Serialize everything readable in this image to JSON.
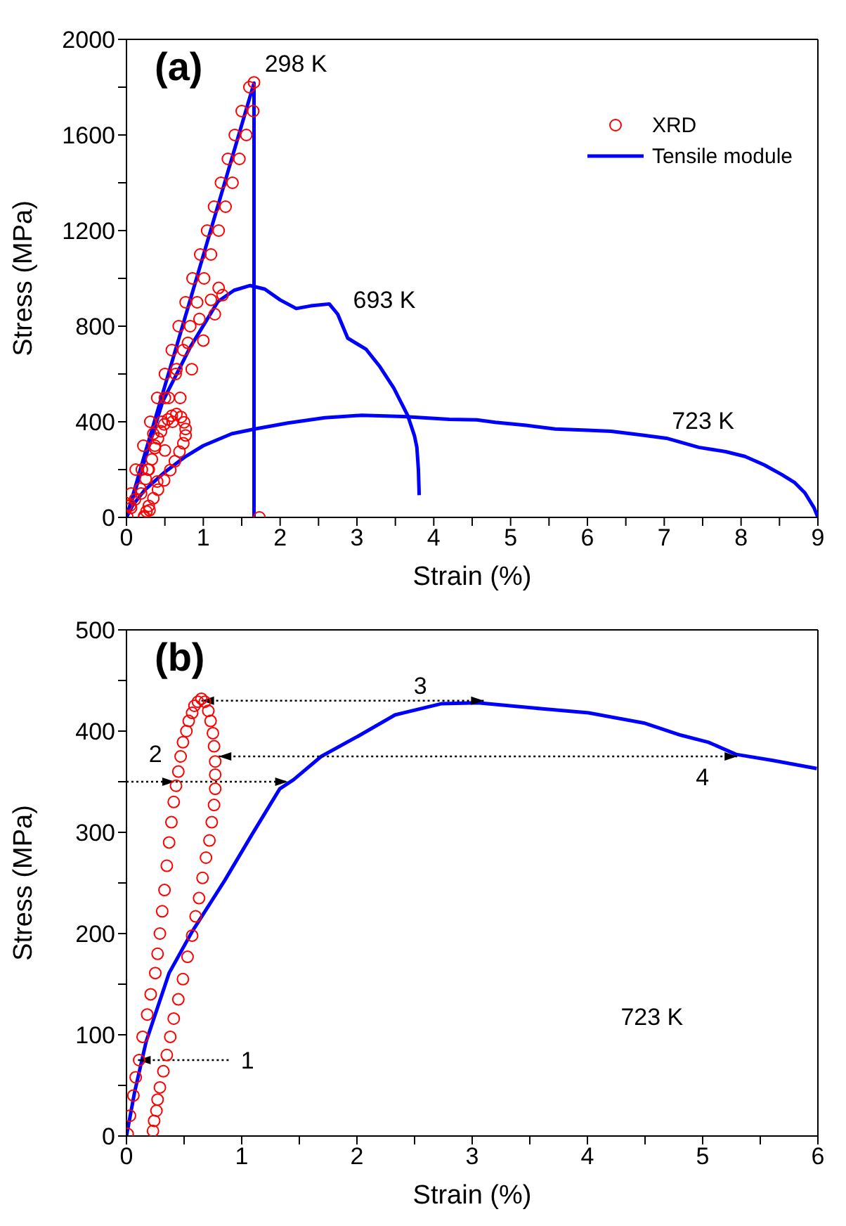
{
  "chart_data": [
    {
      "type": "scatter",
      "title": "(a)",
      "xlabel": "Strain (%)",
      "ylabel": "Stress (MPa)",
      "xlim": [
        0,
        9
      ],
      "ylim": [
        0,
        2000
      ],
      "xticks": [
        0,
        {
          "value": 0.5,
          "label": null
        },
        1,
        {
          "value": 1.5,
          "label": null
        },
        2,
        {
          "value": 2.5,
          "label": null
        },
        3,
        {
          "value": 3.5,
          "label": null
        },
        4,
        {
          "value": 4.5,
          "label": null
        },
        5,
        {
          "value": 5.5,
          "label": null
        },
        6,
        {
          "value": 6.5,
          "label": null
        },
        7,
        {
          "value": 7.5,
          "label": null
        },
        8,
        {
          "value": 8.5,
          "label": null
        },
        9
      ],
      "yticks": [
        0,
        {
          "value": 200,
          "label": null
        },
        400,
        {
          "value": 600,
          "label": null
        },
        800,
        {
          "value": 1000,
          "label": null
        },
        1200,
        {
          "value": 1400,
          "label": null
        },
        1600,
        {
          "value": 1800,
          "label": null
        },
        2000
      ],
      "legend": "top right",
      "annotations": [
        "298 K",
        "693 K",
        "723 K"
      ],
      "series": [
        {
          "name": "XRD",
          "color": "#ff0000",
          "marker": "circle",
          "x": [
            0.0,
            0.06,
            0.12,
            0.22,
            0.31,
            0.4,
            0.5,
            0.59,
            0.68,
            0.77,
            0.86,
            0.96,
            1.05,
            1.14,
            1.23,
            1.32,
            1.41,
            1.5,
            1.6,
            1.66,
            1.65,
            1.56,
            1.47,
            1.38,
            1.29,
            1.2,
            1.1,
            1.01,
            0.92,
            0.83,
            0.74,
            0.64,
            0.55,
            0.46,
            0.37,
            0.28,
            0.19,
            0.23,
            1.73,
            0.05,
            0.2,
            0.35,
            0.5,
            0.65,
            0.8,
            0.95,
            1.1,
            1.2,
            1.25,
            1.15,
            1.0,
            0.85,
            0.7,
            0.6,
            0.5,
            0.4,
            0.3,
            0.01,
            0.06,
            0.11,
            0.18,
            0.25,
            0.29,
            0.33,
            0.37,
            0.41,
            0.45,
            0.49,
            0.54,
            0.59,
            0.65,
            0.71,
            0.75,
            0.77,
            0.77,
            0.74,
            0.69,
            0.63,
            0.57,
            0.49,
            0.41,
            0.35,
            0.29,
            0.26,
            0.23
          ],
          "values": [
            50,
            100,
            200,
            300,
            400,
            500,
            600,
            700,
            800,
            900,
            1000,
            1100,
            1200,
            1300,
            1400,
            1500,
            1600,
            1700,
            1800,
            1820,
            1700,
            1600,
            1500,
            1400,
            1300,
            1200,
            1100,
            1000,
            900,
            800,
            700,
            600,
            500,
            400,
            300,
            200,
            100,
            0,
            0,
            50,
            200,
            350,
            500,
            620,
            730,
            830,
            910,
            960,
            930,
            850,
            740,
            620,
            500,
            400,
            280,
            150,
            30,
            2,
            40,
            75,
            120,
            161,
            200,
            243,
            290,
            330,
            360,
            389,
            410,
            425,
            432,
            420,
            398,
            370,
            343,
            310,
            275,
            235,
            198,
            155,
            116,
            80,
            48,
            25,
            5
          ]
        },
        {
          "type": "line",
          "name": "Tensile module",
          "color": "#0000ff",
          "x": [
            0,
            0.23,
            1.66,
            1.66
          ],
          "values": [
            0,
            255,
            1817,
            0
          ]
        },
        {
          "type": "line",
          "color": "#0000ff",
          "x": [
            0,
            0.2,
            0.47,
            0.83,
            1.19,
            1.4,
            1.61,
            1.8,
            2.0,
            2.21,
            2.4,
            2.64,
            2.75,
            2.88,
            3.12,
            3.3,
            3.48,
            3.66,
            3.75,
            3.78,
            3.8,
            3.81
          ],
          "values": [
            0,
            200,
            484,
            712,
            903,
            950,
            970,
            955,
            910,
            874,
            885,
            893,
            850,
            750,
            703,
            630,
            541,
            427,
            340,
            293,
            200,
            93
          ]
        },
        {
          "type": "line",
          "color": "#0000ff",
          "x": [
            0,
            0.08,
            0.23,
            0.5,
            0.77,
            1.0,
            1.37,
            1.67,
            2.1,
            2.58,
            3.06,
            3.6,
            4.2,
            4.56,
            4.8,
            5.2,
            5.58,
            6.0,
            6.31,
            6.7,
            7.03,
            7.45,
            7.8,
            8.05,
            8.3,
            8.53,
            8.7,
            8.83,
            8.95,
            9.0
          ],
          "values": [
            0,
            50,
            112,
            190,
            255,
            300,
            350,
            370,
            395,
            417,
            427,
            422,
            410,
            408,
            398,
            385,
            370,
            365,
            360,
            345,
            331,
            293,
            275,
            255,
            220,
            179,
            145,
            103,
            40,
            0
          ]
        }
      ]
    },
    {
      "type": "scatter",
      "title": "(b)",
      "xlabel": "Strain (%)",
      "ylabel": "Stress (MPa)",
      "xlim": [
        0,
        6
      ],
      "ylim": [
        0,
        500
      ],
      "xticks": [
        0,
        {
          "value": 0.5,
          "label": null
        },
        1,
        {
          "value": 1.5,
          "label": null
        },
        2,
        {
          "value": 2.5,
          "label": null
        },
        3,
        {
          "value": 3.5,
          "label": null
        },
        4,
        {
          "value": 4.5,
          "label": null
        },
        5,
        {
          "value": 5.5,
          "label": null
        },
        6
      ],
      "yticks": [
        0,
        {
          "value": 50,
          "label": null
        },
        100,
        {
          "value": 150,
          "label": null
        },
        200,
        {
          "value": 250,
          "label": null
        },
        300,
        {
          "value": 350,
          "label": null
        },
        400,
        {
          "value": 450,
          "label": null
        },
        500
      ],
      "annotations": [
        {
          "text": "1",
          "x": 0.1,
          "y": 75
        },
        {
          "text": "2",
          "x": 1.4,
          "y": 350
        },
        {
          "text": "3",
          "x": 3.1,
          "y": 430
        },
        {
          "text": "4",
          "x": 5.3,
          "y": 375
        },
        "723 K"
      ],
      "series": [
        {
          "color": "#ff0000",
          "marker": "circle",
          "x": [
            0.01,
            0.03,
            0.06,
            0.08,
            0.11,
            0.14,
            0.18,
            0.21,
            0.25,
            0.27,
            0.29,
            0.31,
            0.33,
            0.35,
            0.37,
            0.39,
            0.41,
            0.43,
            0.45,
            0.47,
            0.49,
            0.52,
            0.54,
            0.57,
            0.59,
            0.62,
            0.65,
            0.68,
            0.71,
            0.73,
            0.75,
            0.76,
            0.77,
            0.77,
            0.77,
            0.76,
            0.74,
            0.72,
            0.69,
            0.66,
            0.63,
            0.6,
            0.57,
            0.53,
            0.49,
            0.45,
            0.41,
            0.38,
            0.35,
            0.32,
            0.29,
            0.27,
            0.26,
            0.24,
            0.23
          ],
          "values": [
            2,
            20,
            40,
            58,
            75,
            98,
            120,
            140,
            161,
            180,
            200,
            222,
            243,
            267,
            290,
            310,
            330,
            346,
            360,
            375,
            389,
            400,
            410,
            418,
            425,
            429,
            432,
            429,
            420,
            410,
            398,
            385,
            370,
            357,
            343,
            327,
            310,
            292,
            275,
            255,
            235,
            217,
            198,
            177,
            155,
            135,
            116,
            98,
            80,
            64,
            48,
            36,
            25,
            15,
            5
          ]
        },
        {
          "type": "line",
          "color": "#0000ff",
          "x": [
            0,
            0.07,
            0.17,
            0.37,
            0.57,
            0.85,
            1.09,
            1.33,
            1.45,
            1.69,
            2.01,
            2.33,
            2.73,
            3.05,
            3.61,
            4.01,
            4.49,
            4.81,
            5.05,
            5.29,
            5.61,
            5.99
          ],
          "values": [
            0,
            43,
            93,
            161,
            202,
            252,
            298,
            343,
            352,
            375,
            395,
            416,
            427,
            428,
            422,
            418,
            408,
            396,
            389,
            377,
            371,
            363
          ]
        }
      ]
    }
  ]
}
